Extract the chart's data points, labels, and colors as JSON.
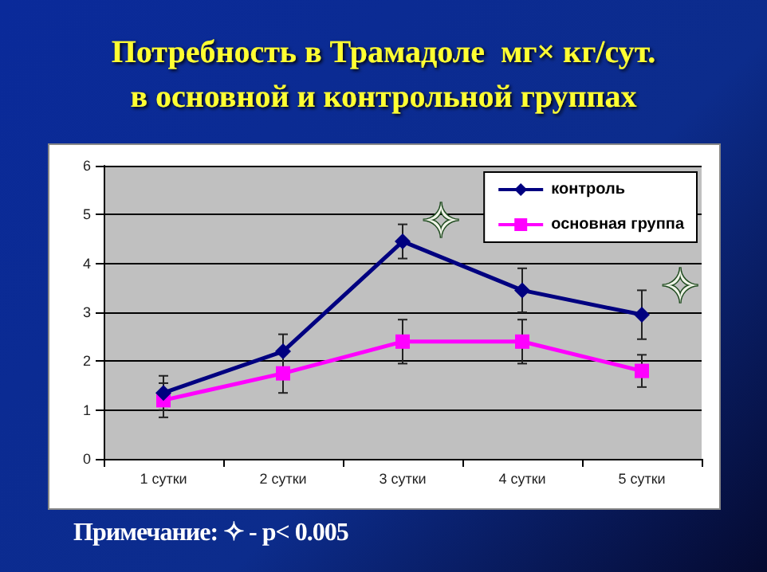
{
  "chart_data": {
    "type": "line",
    "title": "Потребность в Трамадоле  мг× кг/сут.\nв основной и контрольной группах",
    "categories": [
      "1 сутки",
      "2 сутки",
      "3 сутки",
      "4 сутки",
      "5 сутки"
    ],
    "series": [
      {
        "name": "контроль",
        "color": "#000080",
        "marker": "diamond",
        "values": [
          1.35,
          2.2,
          4.45,
          3.45,
          2.95
        ],
        "errors": [
          0.35,
          0.35,
          0.35,
          0.45,
          0.5
        ]
      },
      {
        "name": "основная группа",
        "color": "#ff00ff",
        "marker": "square",
        "values": [
          1.2,
          1.75,
          2.4,
          2.4,
          1.8
        ],
        "errors": [
          0.35,
          0.4,
          0.45,
          0.45,
          0.33
        ]
      }
    ],
    "ylim": [
      0,
      6
    ],
    "yticks": [
      0,
      1,
      2,
      3,
      4,
      5,
      6
    ],
    "grid": "y",
    "legend": "top right",
    "annotations": [
      {
        "text": "✧",
        "x": "3 сутки",
        "y": 4.85
      },
      {
        "text": "✧",
        "x": "5 сутки",
        "y": 3.5
      },
      "Примечание: ✧ - p< 0.005"
    ]
  }
}
